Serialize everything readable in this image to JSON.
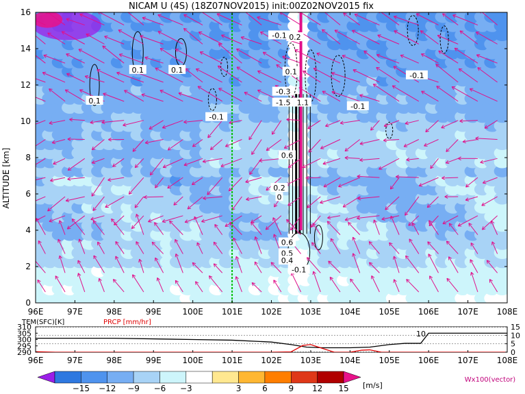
{
  "title": "NICAM U (4S) (18Z07NOV2015) init:00Z02NOV2015 fix",
  "chart_data": [
    {
      "type": "heatmap",
      "name": "U cross-section",
      "x_ticks": [
        "96E",
        "97E",
        "98E",
        "99E",
        "100E",
        "101E",
        "102E",
        "103E",
        "104E",
        "105E",
        "106E",
        "107E",
        "108E"
      ],
      "x_values": [
        96,
        97,
        98,
        99,
        100,
        101,
        102,
        103,
        104,
        105,
        106,
        107,
        108
      ],
      "xlim": [
        96,
        108
      ],
      "ylabel": "ALTITUDE [km]",
      "y_ticks": [
        "0",
        "2",
        "4",
        "6",
        "8",
        "10",
        "12",
        "14",
        "16"
      ],
      "y_values": [
        0,
        2,
        4,
        6,
        8,
        10,
        12,
        14,
        16
      ],
      "ylim": [
        0,
        16
      ],
      "reference_line_x": 101,
      "contour_labels": [
        {
          "text": "0.1",
          "x": 97.5,
          "y": 11.1
        },
        {
          "text": "0.1",
          "x": 98.6,
          "y": 12.8
        },
        {
          "text": "0.1",
          "x": 99.6,
          "y": 12.8
        },
        {
          "text": "-0.1",
          "x": 100.6,
          "y": 10.2
        },
        {
          "text": "-0.1",
          "x": 102.2,
          "y": 14.7
        },
        {
          "text": "0.2",
          "x": 102.6,
          "y": 14.6
        },
        {
          "text": "0.1",
          "x": 102.5,
          "y": 12.7
        },
        {
          "text": "-0.3",
          "x": 102.3,
          "y": 11.6
        },
        {
          "text": "-1.5",
          "x": 102.3,
          "y": 11.0
        },
        {
          "text": "1.1",
          "x": 102.8,
          "y": 11.0
        },
        {
          "text": "-0.1",
          "x": 104.2,
          "y": 10.8
        },
        {
          "text": "-0.1",
          "x": 105.7,
          "y": 12.5
        },
        {
          "text": "0.6",
          "x": 102.4,
          "y": 8.1
        },
        {
          "text": "0.2",
          "x": 102.2,
          "y": 6.3
        },
        {
          "text": "0",
          "x": 102.2,
          "y": 5.8
        },
        {
          "text": "0.6",
          "x": 102.4,
          "y": 3.3
        },
        {
          "text": "0.5",
          "x": 102.4,
          "y": 2.7
        },
        {
          "text": "0.4",
          "x": 102.4,
          "y": 2.3
        },
        {
          "text": "-0.1",
          "x": 102.7,
          "y": 1.8
        }
      ]
    },
    {
      "type": "line",
      "name": "surface panel",
      "series": [
        {
          "name": "TEM(SFC)[K]",
          "color": "#000000",
          "x": [
            96,
            97,
            98,
            99,
            100,
            101,
            102,
            102.5,
            102.9,
            103.3,
            104,
            104.5,
            105,
            105.4,
            105.8,
            106,
            106.5,
            108
          ],
          "y": [
            301,
            301,
            301,
            300.5,
            300,
            299.5,
            298,
            296,
            294,
            293.5,
            293.5,
            294,
            296,
            297,
            297,
            305,
            305,
            305
          ]
        },
        {
          "name": "PRCP [mm/hr]",
          "color": "#e00000",
          "x": [
            96,
            96.5,
            97,
            102,
            102.5,
            102.8,
            103,
            103.2,
            103.6,
            104,
            104.3,
            104.5,
            104.8,
            108
          ],
          "y": [
            0.3,
            0,
            0,
            0,
            0.2,
            4,
            4.5,
            3,
            0,
            0,
            1.2,
            1.4,
            0,
            0
          ]
        }
      ],
      "left_axis_ticks": [
        "310",
        "305",
        "300",
        "295",
        "290"
      ],
      "left_axis_values": [
        310,
        305,
        300,
        295,
        290
      ],
      "right_axis_ticks": [
        "15",
        "10",
        "5",
        "0"
      ],
      "right_axis_values": [
        15,
        10,
        5,
        0
      ],
      "annotation": "10",
      "x_ticks": [
        "96E",
        "97E",
        "98E",
        "99E",
        "100E",
        "101E",
        "102E",
        "103E",
        "104E",
        "105E",
        "106E",
        "107E",
        "108E"
      ]
    }
  ],
  "colorbar": {
    "labels": [
      "−15",
      "−12",
      "−9",
      "−6",
      "−3",
      "3",
      "6",
      "9",
      "12",
      "15"
    ],
    "colors": [
      "#9B1FE8",
      "#2E78E0",
      "#4F93EE",
      "#77AEF3",
      "#A8D3F6",
      "#CDF5FB",
      "#FFFFFF",
      "#FFE890",
      "#FFB732",
      "#FF7E00",
      "#DF3818",
      "#B00000",
      "#E8128A"
    ],
    "unit": "[m/s]",
    "vector_label": "Wx100(vector)"
  }
}
